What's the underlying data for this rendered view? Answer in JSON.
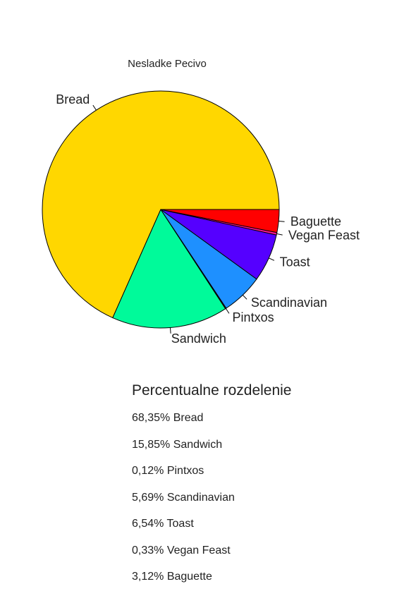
{
  "chart_data": {
    "type": "pie",
    "title": "Nesladke Pecivo",
    "slices": [
      {
        "label": "Bread",
        "value": 68.35,
        "color": "#FFD700"
      },
      {
        "label": "Sandwich",
        "value": 15.85,
        "color": "#00FA9A"
      },
      {
        "label": "Pintxos",
        "value": 0.12,
        "color": "#8B0000"
      },
      {
        "label": "Scandinavian",
        "value": 5.69,
        "color": "#1E90FF"
      },
      {
        "label": "Toast",
        "value": 6.54,
        "color": "#5500FF"
      },
      {
        "label": "Vegan Feast",
        "value": 0.33,
        "color": "#FF1493"
      },
      {
        "label": "Baguette",
        "value": 3.12,
        "color": "#FF0000"
      }
    ],
    "legend": "none"
  },
  "breakdown": {
    "heading": "Percentualne rozdelenie",
    "items": [
      "68,35% Bread",
      "15,85% Sandwich",
      "0,12% Pintxos",
      "5,69% Scandinavian",
      "6,54% Toast",
      "0,33% Vegan Feast",
      "3,12% Baguette"
    ]
  }
}
